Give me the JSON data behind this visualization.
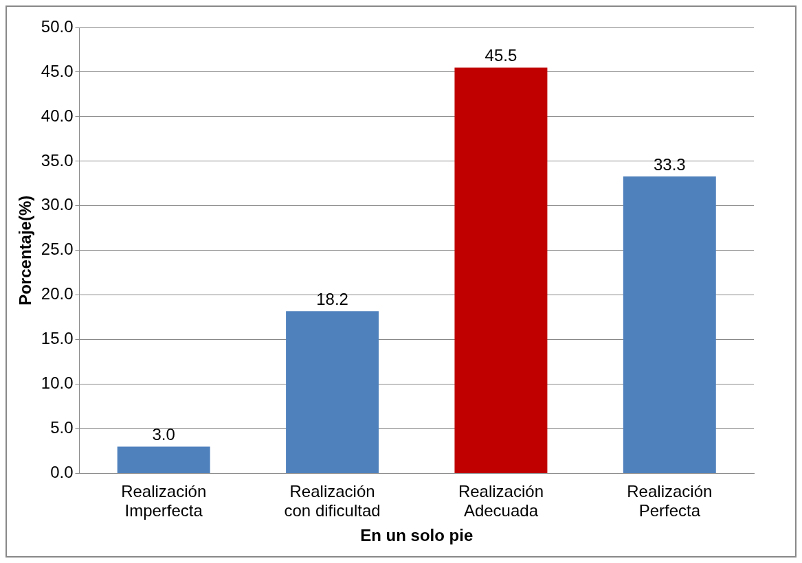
{
  "chart_data": {
    "type": "bar",
    "xlabel": "En un solo pie",
    "ylabel": "Porcentaje(%)",
    "categories": [
      "Realización Imperfecta",
      "Realización con dificultad",
      "Realización Adecuada",
      "Realización Perfecta"
    ],
    "values": [
      3.0,
      18.2,
      45.5,
      33.3
    ],
    "colors": [
      "#4f81bd",
      "#4f81bd",
      "#c00000",
      "#4f81bd"
    ],
    "value_labels": [
      "3.0",
      "18.2",
      "45.5",
      "33.3"
    ],
    "ylim": [
      0,
      50
    ],
    "yticks": [
      {
        "value": 0,
        "label": "0.0"
      },
      {
        "value": 5,
        "label": "5.0"
      },
      {
        "value": 10,
        "label": "10.0"
      },
      {
        "value": 15,
        "label": "15.0"
      },
      {
        "value": 20,
        "label": "20.0"
      },
      {
        "value": 25,
        "label": "25.0"
      },
      {
        "value": 30,
        "label": "30.0"
      },
      {
        "value": 35,
        "label": "35.0"
      },
      {
        "value": 40,
        "label": "40.0"
      },
      {
        "value": 45,
        "label": "45.0"
      },
      {
        "value": 50,
        "label": "50.0"
      }
    ],
    "grid": "y",
    "legend": false
  }
}
